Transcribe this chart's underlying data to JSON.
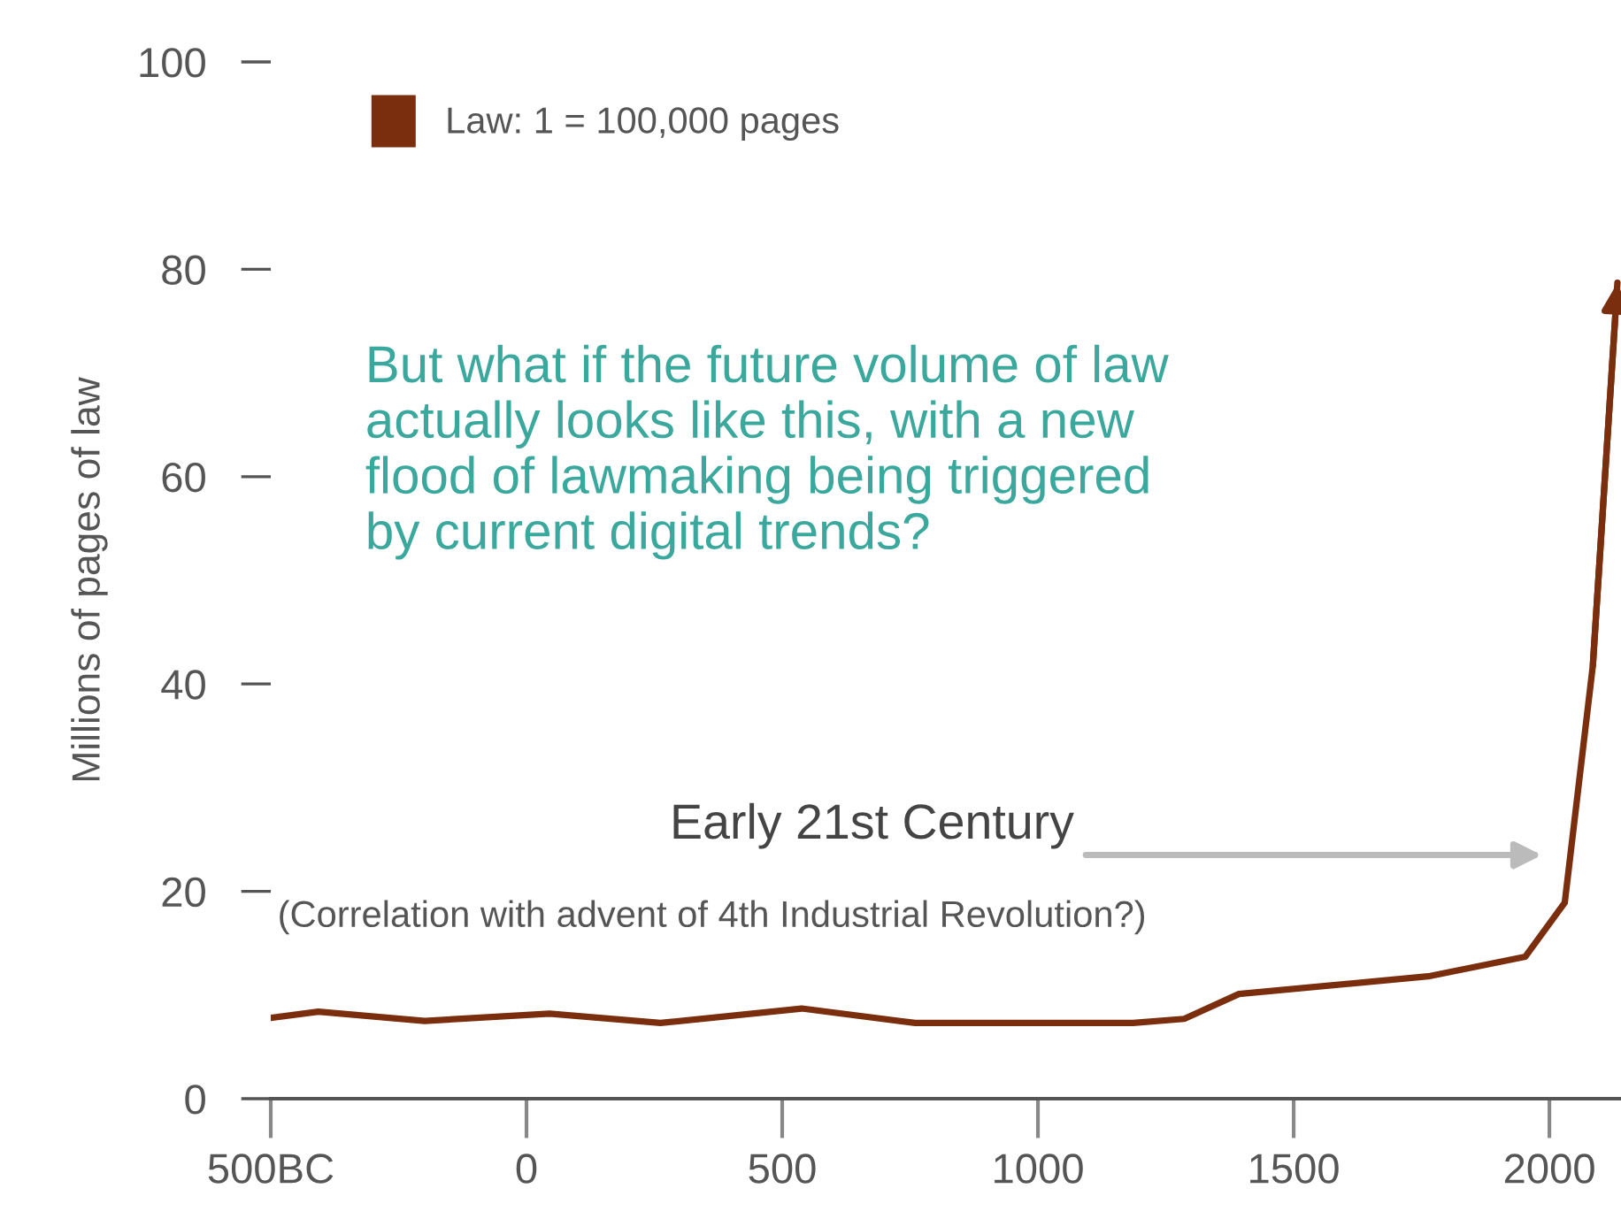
{
  "chart_data": {
    "type": "line",
    "ylabel": "Millions of pages of law",
    "xlim": [
      -500,
      2140
    ],
    "xticks": [
      {
        "value": -500,
        "label": "500BC"
      },
      0,
      500,
      1000,
      1500,
      2000
    ],
    "ylim": [
      0,
      100
    ],
    "yticks": [
      0,
      20,
      40,
      60,
      80,
      100
    ],
    "series": [
      {
        "name": "Law: 1 = 100,000 pages",
        "color": "#7a2e0e",
        "x": [
          -500,
          -407,
          -199,
          45,
          262,
          538,
          760,
          1047,
          1186,
          1286,
          1393,
          1763,
          1953,
          2030,
          2085,
          2133
        ],
        "values": [
          7.8,
          8.4,
          7.5,
          8.2,
          7.3,
          8.7,
          7.3,
          7.3,
          7.3,
          7.7,
          10.1,
          11.8,
          13.7,
          18.9,
          41.8,
          78.7
        ]
      }
    ],
    "annotations": [
      "But what if the future volume of law\nactually looks like this, with a new\nflood of lawmaking being triggered\nby current digital trends?",
      "Early 21st Century",
      "(Correlation with advent of 4th Industrial Revolution?)"
    ],
    "legend": "top left",
    "grid": false,
    "marker": "none",
    "line_style": "solid"
  }
}
